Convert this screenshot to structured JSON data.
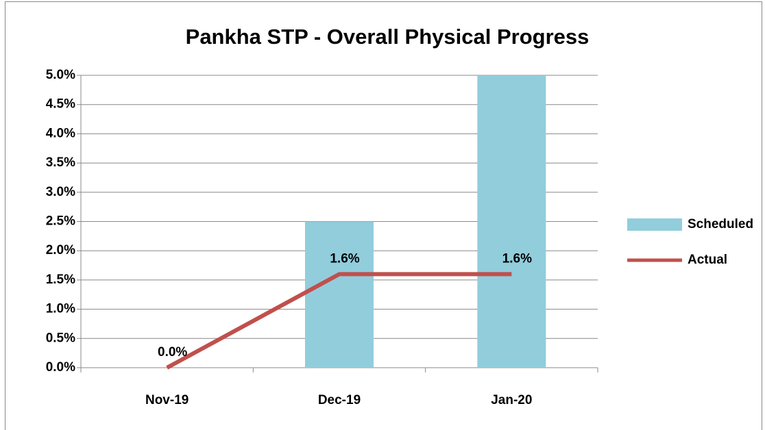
{
  "chart_data": {
    "type": "bar",
    "title": "Pankha STP - Overall Physical Progress",
    "categories": [
      "Nov-19",
      "Dec-19",
      "Jan-20"
    ],
    "series": [
      {
        "name": "Scheduled",
        "type": "bar",
        "color": "#92cddc",
        "values": [
          0,
          2.5,
          5.0
        ]
      },
      {
        "name": "Actual",
        "type": "line",
        "color": "#c0504d",
        "values": [
          0,
          1.6,
          1.6
        ],
        "value_labels": [
          "0.0%",
          "1.6%",
          "1.6%"
        ]
      }
    ],
    "ylim": [
      0,
      5
    ],
    "yticks": [
      {
        "value": 0,
        "label": "0.0%"
      },
      {
        "value": 0.5,
        "label": "0.5%"
      },
      {
        "value": 1,
        "label": "1.0%"
      },
      {
        "value": 1.5,
        "label": "1.5%"
      },
      {
        "value": 2,
        "label": "2.0%"
      },
      {
        "value": 2.5,
        "label": "2.5%"
      },
      {
        "value": 3,
        "label": "3.0%"
      },
      {
        "value": 3.5,
        "label": "3.5%"
      },
      {
        "value": 4,
        "label": "4.0%"
      },
      {
        "value": 4.5,
        "label": "4.5%"
      },
      {
        "value": 5,
        "label": "5.0%"
      }
    ],
    "grid": true,
    "legend": "right"
  }
}
